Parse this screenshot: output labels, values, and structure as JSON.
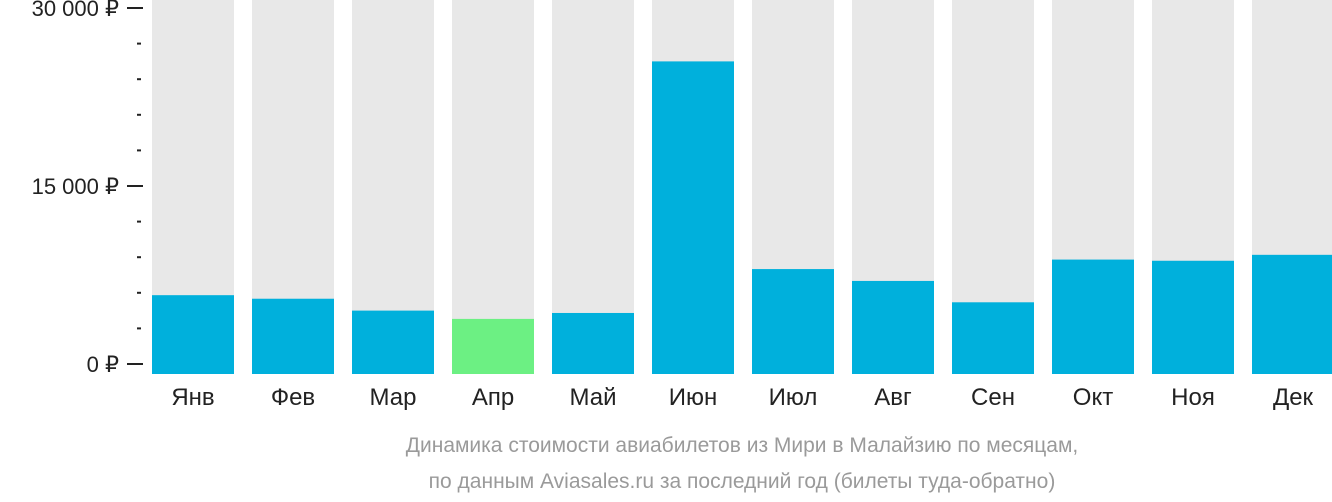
{
  "chart_data": {
    "type": "bar",
    "title": "",
    "xlabel": "",
    "ylabel": "",
    "categories": [
      "Янв",
      "Фев",
      "Мар",
      "Апр",
      "Май",
      "Июн",
      "Июл",
      "Авг",
      "Сен",
      "Окт",
      "Ноя",
      "Дек"
    ],
    "values": [
      5800,
      5500,
      4500,
      3800,
      4300,
      25500,
      8000,
      7000,
      5200,
      8800,
      8700,
      9200
    ],
    "ylim": [
      0,
      30000
    ],
    "yticks": [
      {
        "value": 30000,
        "label": "30 000 ₽"
      },
      {
        "value": 15000,
        "label": "15 000 ₽"
      },
      {
        "value": 0,
        "label": "0 ₽"
      }
    ],
    "minor_tick_step": 3000,
    "highlight_index": 3,
    "grid": false,
    "colors": {
      "bar": "#00b0dc",
      "highlight": "#6cf083",
      "background_bar": "#e8e8e8",
      "axis": "#222222"
    },
    "caption": [
      "Динамика стоимости авиабилетов из Мири в Малайзию по месяцам,",
      "по данным Aviasales.ru за последний год (билеты туда-обратно)"
    ]
  }
}
